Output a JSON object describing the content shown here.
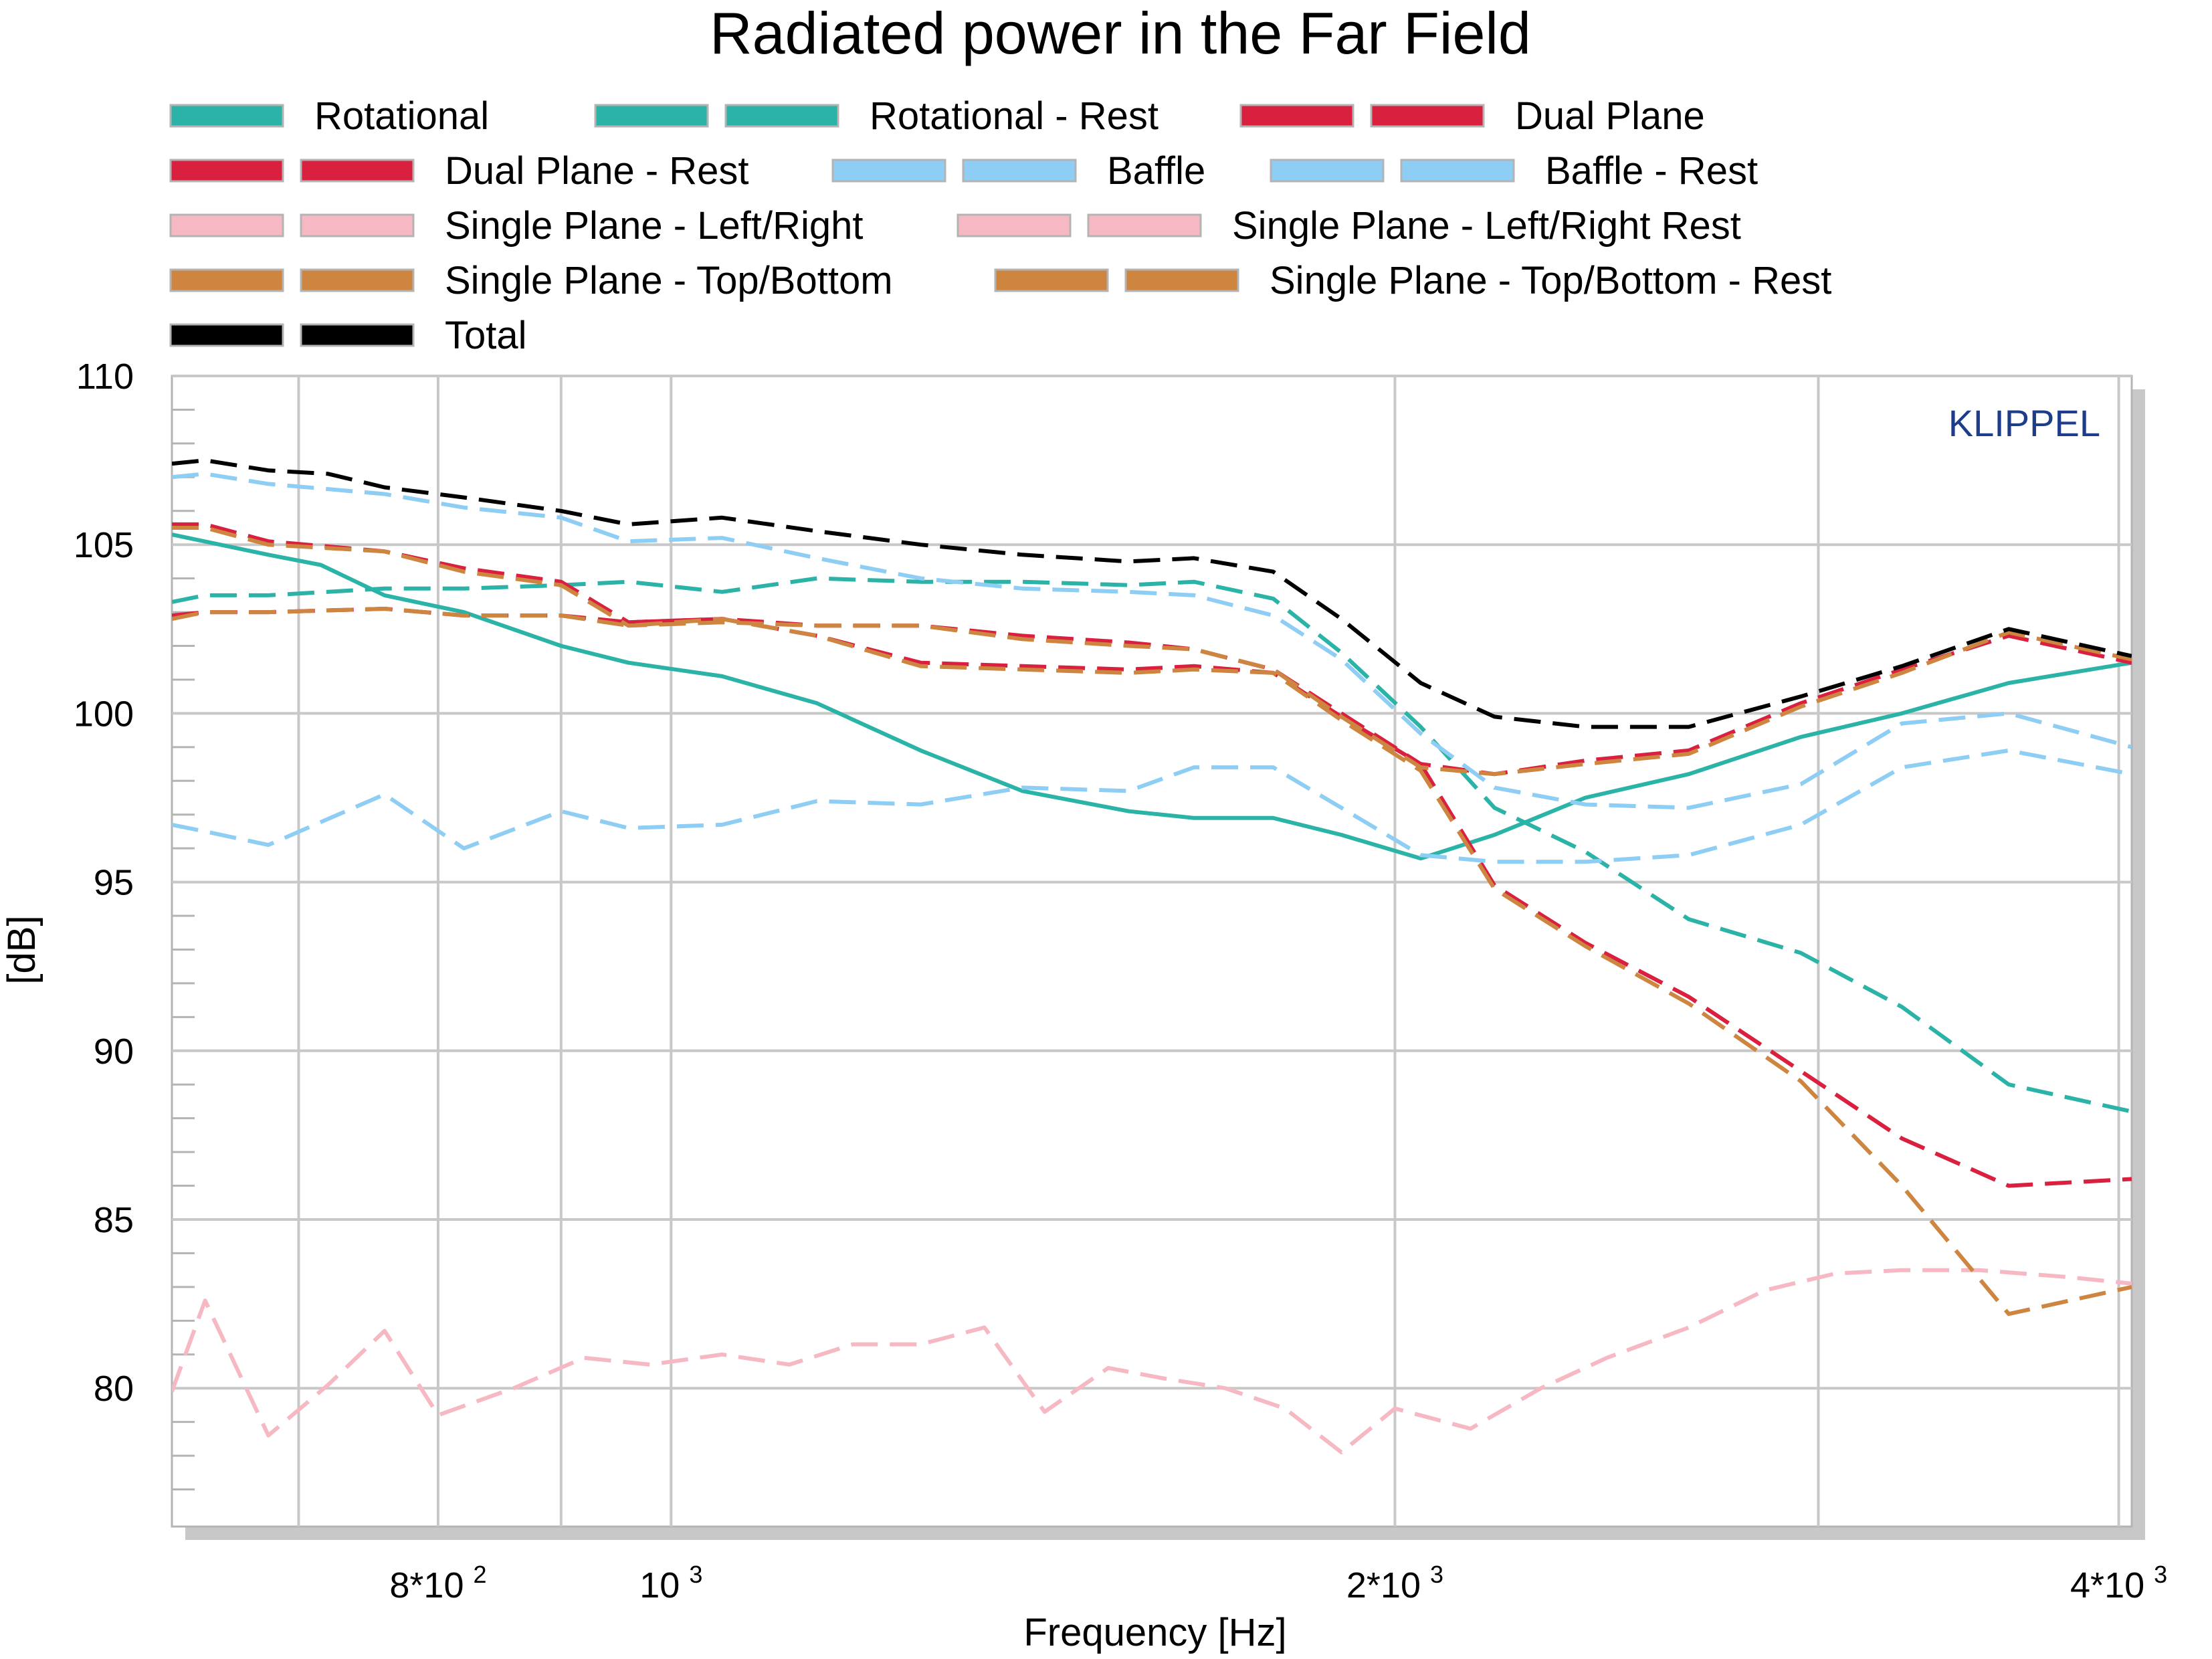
{
  "chart_data": {
    "type": "line",
    "title": "Radiated power in the Far Field",
    "xlabel": "Frequency [Hz]",
    "ylabel": "[dB]",
    "x_scale": "log",
    "xlim": [
      620,
      4050
    ],
    "ylim": [
      75.9,
      110
    ],
    "y_ticks": [
      110,
      105,
      100,
      95,
      90,
      85,
      80
    ],
    "x_ticks": [
      {
        "value": 800,
        "base": "8*10",
        "exp": "2"
      },
      {
        "value": 1000,
        "base": "10",
        "exp": "3"
      },
      {
        "value": 2000,
        "base": "2*10",
        "exp": "3"
      },
      {
        "value": 4000,
        "base": "4*10",
        "exp": "3"
      }
    ],
    "x_grid": [
      700,
      800,
      900,
      1000,
      2000,
      3000,
      4000
    ],
    "grid": true,
    "legend_position": "top",
    "brand": "KLIPPEL",
    "series": [
      {
        "name": "Rotational",
        "color": "#2ab3a6",
        "dash": "solid",
        "x": [
          620,
          680,
          715,
          760,
          820,
          900,
          960,
          1050,
          1150,
          1270,
          1400,
          1550,
          1650,
          1780,
          1900,
          2050,
          2200,
          2400,
          2650,
          2950,
          3250,
          3600,
          4050
        ],
        "y": [
          105.3,
          104.7,
          104.4,
          103.5,
          103.0,
          102.0,
          101.5,
          101.1,
          100.3,
          98.9,
          97.7,
          97.1,
          96.9,
          96.9,
          96.4,
          95.7,
          96.4,
          97.5,
          98.2,
          99.3,
          100.0,
          100.9,
          101.5
        ]
      },
      {
        "name": "Rotational - Rest",
        "color": "#2ab3a6",
        "dash": "dashed",
        "x": [
          620,
          640,
          680,
          760,
          820,
          900,
          960,
          1050,
          1150,
          1270,
          1400,
          1550,
          1650,
          1780,
          1900,
          2050,
          2200,
          2400,
          2650,
          2950,
          3250,
          3600,
          4050
        ],
        "y": [
          103.3,
          103.5,
          103.5,
          103.7,
          103.7,
          103.8,
          103.9,
          103.6,
          104.0,
          103.9,
          103.9,
          103.8,
          103.9,
          103.4,
          101.8,
          99.6,
          97.2,
          95.9,
          93.9,
          92.9,
          91.3,
          89.0,
          88.2
        ]
      },
      {
        "name": "Dual Plane",
        "color": "#d9203f",
        "dash": "dashed",
        "x": [
          620,
          640,
          680,
          760,
          820,
          900,
          960,
          1050,
          1150,
          1270,
          1400,
          1550,
          1650,
          1780,
          1900,
          2050,
          2200,
          2400,
          2650,
          2950,
          3250,
          3600,
          4050
        ],
        "y": [
          102.9,
          103.0,
          103.0,
          103.1,
          102.9,
          102.9,
          102.7,
          102.8,
          102.3,
          101.5,
          101.4,
          101.3,
          101.4,
          101.2,
          99.9,
          98.5,
          94.9,
          93.2,
          91.6,
          89.4,
          87.4,
          86.0,
          86.2
        ]
      },
      {
        "name": "Dual Plane - Rest",
        "color": "#d9203f",
        "dash": "dashed",
        "x": [
          620,
          640,
          680,
          760,
          820,
          900,
          960,
          1050,
          1150,
          1270,
          1400,
          1550,
          1650,
          1780,
          1900,
          2050,
          2200,
          2400,
          2650,
          2950,
          3250,
          3600,
          4050
        ],
        "y": [
          105.6,
          105.6,
          105.1,
          104.8,
          104.3,
          103.9,
          102.7,
          102.8,
          102.6,
          102.6,
          102.3,
          102.1,
          101.9,
          101.3,
          100.0,
          98.5,
          98.2,
          98.6,
          98.9,
          100.3,
          101.3,
          102.3,
          101.5
        ]
      },
      {
        "name": "Baffle",
        "color": "#8ecdf4",
        "dash": "dashed",
        "x": [
          620,
          640,
          680,
          760,
          820,
          900,
          960,
          1050,
          1150,
          1270,
          1400,
          1550,
          1650,
          1780,
          1900,
          2050,
          2200,
          2400,
          2650,
          2950,
          3250,
          3600,
          4050
        ],
        "y": [
          96.7,
          96.5,
          96.1,
          97.6,
          96.0,
          97.1,
          96.6,
          96.7,
          97.4,
          97.3,
          97.8,
          97.7,
          98.4,
          98.4,
          97.2,
          95.8,
          95.6,
          95.6,
          95.8,
          96.7,
          98.4,
          98.9,
          98.2
        ]
      },
      {
        "name": "Baffle - Rest",
        "color": "#8ecdf4",
        "dash": "dashed",
        "x": [
          620,
          640,
          680,
          760,
          820,
          900,
          960,
          1050,
          1150,
          1270,
          1400,
          1550,
          1650,
          1780,
          1900,
          2050,
          2200,
          2400,
          2650,
          2950,
          3250,
          3600,
          4050
        ],
        "y": [
          107.0,
          107.1,
          106.8,
          106.5,
          106.1,
          105.8,
          105.1,
          105.2,
          104.6,
          104.0,
          103.7,
          103.6,
          103.5,
          102.9,
          101.6,
          99.4,
          97.8,
          97.3,
          97.2,
          97.9,
          99.7,
          100.0,
          99.0
        ]
      },
      {
        "name": "Single Plane - Left/Right",
        "color": "#f6b9c4",
        "dash": "dashed",
        "x": [
          620,
          640,
          680,
          720,
          760,
          800,
          860,
          920,
          980,
          1050,
          1120,
          1190,
          1270,
          1350,
          1430,
          1520,
          1600,
          1700,
          1800,
          1900,
          2000,
          2150,
          2300,
          2450,
          2650,
          2850,
          3050,
          3250,
          3500,
          3800,
          4050
        ],
        "y": [
          79.9,
          82.6,
          78.6,
          80.1,
          81.7,
          79.2,
          80.0,
          80.9,
          80.7,
          81.0,
          80.7,
          81.3,
          81.3,
          81.8,
          79.3,
          80.6,
          80.3,
          80.0,
          79.4,
          78.1,
          79.4,
          78.8,
          80.0,
          80.9,
          81.8,
          82.9,
          83.4,
          83.5,
          83.5,
          83.3,
          83.1
        ]
      },
      {
        "name": "Single Plane - Left/Right Rest",
        "color": "#f6b9c4",
        "dash": "dashed",
        "x": [],
        "y": []
      },
      {
        "name": "Single Plane - Top/Bottom",
        "color": "#cd8540",
        "dash": "dashed",
        "x": [
          620,
          640,
          680,
          760,
          820,
          900,
          960,
          1050,
          1150,
          1270,
          1400,
          1550,
          1650,
          1780,
          1900,
          2050,
          2200,
          2400,
          2650,
          2950,
          3250,
          3600,
          4050
        ],
        "y": [
          102.8,
          103.0,
          103.0,
          103.1,
          102.9,
          102.9,
          102.6,
          102.8,
          102.3,
          101.4,
          101.3,
          101.2,
          101.3,
          101.2,
          99.8,
          98.3,
          94.8,
          93.1,
          91.4,
          89.1,
          86.0,
          82.2,
          83.0
        ]
      },
      {
        "name": "Single Plane - Top/Bottom - Rest",
        "color": "#cd8540",
        "dash": "dashed",
        "x": [
          620,
          640,
          680,
          760,
          820,
          900,
          960,
          1050,
          1150,
          1270,
          1400,
          1550,
          1650,
          1780,
          1900,
          2050,
          2200,
          2400,
          2650,
          2950,
          3250,
          3600,
          4050
        ],
        "y": [
          105.5,
          105.5,
          105.0,
          104.8,
          104.2,
          103.8,
          102.6,
          102.7,
          102.6,
          102.6,
          102.2,
          102.0,
          101.9,
          101.3,
          99.9,
          98.4,
          98.2,
          98.5,
          98.8,
          100.2,
          101.2,
          102.4,
          101.6
        ]
      },
      {
        "name": "Total",
        "color": "#000000",
        "dash": "dashed",
        "x": [
          620,
          640,
          680,
          720,
          760,
          820,
          900,
          960,
          1050,
          1150,
          1270,
          1400,
          1550,
          1650,
          1780,
          1900,
          2050,
          2200,
          2400,
          2650,
          2950,
          3250,
          3600,
          4050
        ],
        "y": [
          107.4,
          107.5,
          107.2,
          107.1,
          106.7,
          106.4,
          106.0,
          105.6,
          105.8,
          105.4,
          105.0,
          104.7,
          104.5,
          104.6,
          104.2,
          102.8,
          100.9,
          99.9,
          99.6,
          99.6,
          100.5,
          101.4,
          102.5,
          101.7
        ]
      }
    ]
  }
}
